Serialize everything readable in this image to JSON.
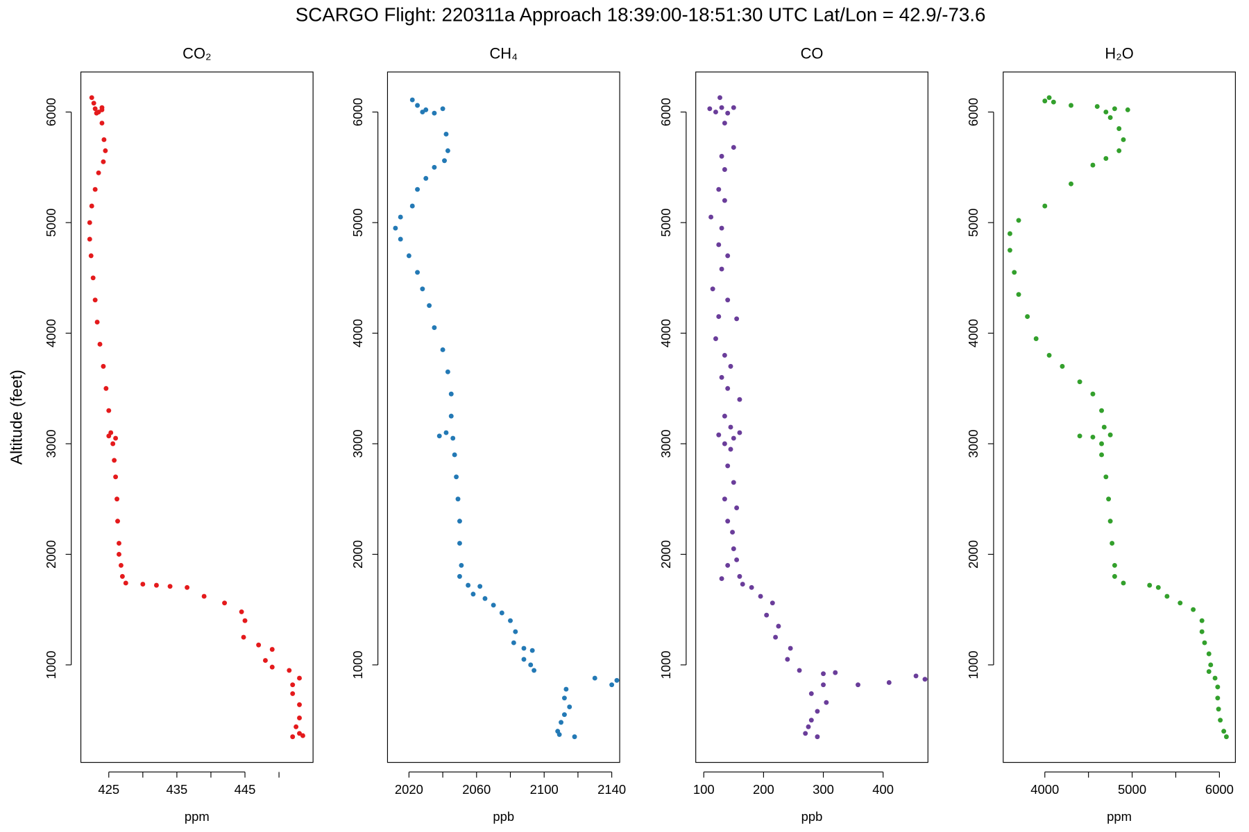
{
  "title": "SCARGO Flight: 220311a  Approach  18:39:00-18:51:30 UTC  Lat/Lon = 42.9/-73.6",
  "chart_data": [
    {
      "type": "scatter",
      "title": "CO₂",
      "xlabel": "ppm",
      "ylabel": "Altitude (feet)",
      "color": "#e41a1c",
      "xlim": [
        420.9,
        455
      ],
      "xticks": [
        425,
        435,
        445
      ],
      "xminorticks": [
        430,
        440,
        450
      ],
      "ylim": [
        118,
        6362
      ],
      "yticks": [
        1000,
        2000,
        3000,
        4000,
        5000,
        6000
      ],
      "x": [
        422.5,
        422.8,
        423,
        423.5,
        424,
        423.2,
        424,
        424,
        424.3,
        424.5,
        424.2,
        423.5,
        423,
        422.5,
        422.2,
        422.2,
        422.4,
        422.7,
        423,
        423.3,
        423.7,
        424.2,
        424.6,
        425,
        425.3,
        425,
        426,
        425.6,
        425.8,
        426,
        426.2,
        426.3,
        426.5,
        426.5,
        426.8,
        427,
        427.5,
        430,
        432,
        434,
        436.5,
        439,
        442,
        444.5,
        445,
        444.8,
        447,
        449,
        448,
        449,
        451.5,
        453,
        452,
        452,
        453,
        453,
        452.5,
        453,
        453.5,
        452
      ],
      "y": [
        6130,
        6080,
        6030,
        6000,
        6020,
        5990,
        6040,
        5900,
        5750,
        5650,
        5550,
        5450,
        5300,
        5150,
        5000,
        4850,
        4700,
        4500,
        4300,
        4100,
        3900,
        3700,
        3500,
        3300,
        3100,
        3070,
        3050,
        3000,
        2850,
        2700,
        2500,
        2300,
        2100,
        2000,
        1900,
        1800,
        1740,
        1730,
        1720,
        1710,
        1700,
        1620,
        1560,
        1480,
        1400,
        1250,
        1180,
        1140,
        1040,
        980,
        950,
        880,
        820,
        740,
        640,
        520,
        440,
        380,
        360,
        350
      ]
    },
    {
      "type": "scatter",
      "title": "CH₄",
      "xlabel": "ppb",
      "color": "#2379b5",
      "xlim": [
        2007.3,
        2144.7
      ],
      "xticks": [
        2020,
        2060,
        2100,
        2140
      ],
      "xminorticks": [
        2040,
        2080,
        2120
      ],
      "ylim": [
        118,
        6362
      ],
      "yticks": [
        1000,
        2000,
        3000,
        4000,
        5000,
        6000
      ],
      "x": [
        2022,
        2025,
        2030,
        2040,
        2035,
        2028,
        2042,
        2043,
        2041,
        2035,
        2030,
        2025,
        2022,
        2015,
        2012,
        2015,
        2020,
        2025,
        2028,
        2032,
        2035,
        2040,
        2043,
        2045,
        2045,
        2042,
        2038,
        2046,
        2047,
        2048,
        2049,
        2050,
        2050,
        2051,
        2050,
        2055,
        2062,
        2058,
        2065,
        2070,
        2075,
        2080,
        2083,
        2082,
        2088,
        2093,
        2088,
        2092,
        2094,
        2113,
        2130,
        2143,
        2140,
        2112,
        2115,
        2112,
        2110,
        2108,
        2109,
        2118
      ],
      "y": [
        6110,
        6060,
        6020,
        6030,
        5990,
        6000,
        5800,
        5650,
        5560,
        5500,
        5400,
        5300,
        5150,
        5050,
        4950,
        4850,
        4700,
        4550,
        4400,
        4250,
        4050,
        3850,
        3650,
        3450,
        3250,
        3100,
        3070,
        3050,
        2900,
        2700,
        2500,
        2300,
        2100,
        1900,
        1800,
        1720,
        1710,
        1640,
        1600,
        1540,
        1470,
        1400,
        1300,
        1200,
        1150,
        1130,
        1050,
        1000,
        950,
        780,
        880,
        860,
        820,
        700,
        620,
        550,
        480,
        400,
        370,
        350
      ]
    },
    {
      "type": "scatter",
      "title": "CO",
      "xlabel": "ppb",
      "color": "#6a3d9a",
      "xlim": [
        86.6,
        475
      ],
      "xticks": [
        100,
        200,
        300,
        400
      ],
      "xminorticks": [],
      "ylim": [
        118,
        6362
      ],
      "yticks": [
        1000,
        2000,
        3000,
        4000,
        5000,
        6000
      ],
      "x": [
        127,
        110,
        130,
        150,
        120,
        140,
        135,
        150,
        130,
        135,
        125,
        135,
        112,
        130,
        125,
        140,
        130,
        115,
        140,
        125,
        155,
        120,
        135,
        145,
        130,
        140,
        160,
        135,
        145,
        125,
        150,
        160,
        135,
        145,
        140,
        150,
        135,
        155,
        140,
        148,
        150,
        155,
        140,
        160,
        130,
        165,
        180,
        195,
        215,
        205,
        225,
        220,
        245,
        240,
        260,
        320,
        300,
        358,
        410,
        455,
        470,
        300,
        280,
        305,
        290,
        280,
        275,
        270,
        290
      ],
      "y": [
        6130,
        6030,
        6040,
        6040,
        6000,
        5990,
        5900,
        5680,
        5600,
        5480,
        5300,
        5200,
        5050,
        4950,
        4800,
        4700,
        4580,
        4400,
        4300,
        4150,
        4130,
        3950,
        3800,
        3700,
        3600,
        3500,
        3400,
        3250,
        3150,
        3080,
        3050,
        3100,
        3000,
        2950,
        2800,
        2650,
        2500,
        2420,
        2300,
        2200,
        2050,
        1950,
        1900,
        1800,
        1780,
        1730,
        1700,
        1620,
        1560,
        1450,
        1350,
        1250,
        1150,
        1050,
        950,
        930,
        920,
        820,
        840,
        900,
        870,
        820,
        740,
        660,
        580,
        500,
        440,
        380,
        350
      ]
    },
    {
      "type": "scatter",
      "title": "H₂O",
      "xlabel": "ppm",
      "color": "#33a02c",
      "xlim": [
        3523,
        6183
      ],
      "xticks": [
        4000,
        5000,
        6000
      ],
      "xminorticks": [
        4500,
        5500
      ],
      "ylim": [
        118,
        6362
      ],
      "yticks": [
        1000,
        2000,
        3000,
        4000,
        5000,
        6000
      ],
      "x": [
        4000,
        4100,
        4050,
        4300,
        4600,
        4800,
        4950,
        4700,
        4750,
        4850,
        4900,
        4850,
        4700,
        4550,
        4300,
        4000,
        3700,
        3600,
        3600,
        3650,
        3700,
        3800,
        3900,
        4050,
        4200,
        4400,
        4550,
        4650,
        4680,
        4400,
        4550,
        4750,
        4650,
        4650,
        4700,
        4730,
        4750,
        4770,
        4800,
        4800,
        4900,
        5200,
        5300,
        5400,
        5550,
        5700,
        5800,
        5800,
        5830,
        5880,
        5900,
        5880,
        5950,
        5980,
        5980,
        5990,
        6010,
        6050,
        6080
      ],
      "y": [
        6100,
        6090,
        6130,
        6060,
        6050,
        6030,
        6020,
        6000,
        5950,
        5850,
        5750,
        5650,
        5580,
        5520,
        5350,
        5150,
        5020,
        4900,
        4750,
        4550,
        4350,
        4150,
        3950,
        3800,
        3700,
        3560,
        3450,
        3300,
        3150,
        3070,
        3060,
        3080,
        3000,
        2900,
        2700,
        2500,
        2300,
        2100,
        1900,
        1800,
        1740,
        1720,
        1700,
        1620,
        1560,
        1500,
        1400,
        1300,
        1200,
        1100,
        1000,
        940,
        880,
        800,
        700,
        600,
        500,
        400,
        350
      ]
    }
  ]
}
